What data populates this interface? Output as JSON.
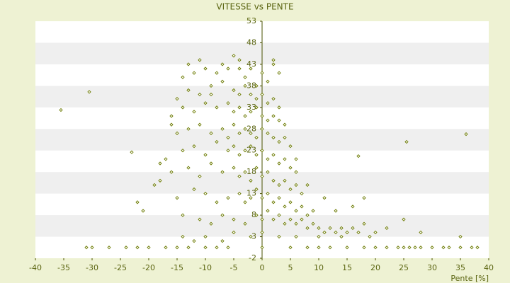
{
  "chart_data": {
    "type": "scatter",
    "title": "VITESSE vs PENTE",
    "x_label": "Pente [%]",
    "color": "#6b7a00",
    "grid": true,
    "xlim": [
      -40,
      40
    ],
    "xticks": [
      -40,
      -35,
      -30,
      -25,
      -20,
      -15,
      -10,
      -5,
      0,
      5,
      10,
      15,
      20,
      25,
      30,
      35,
      40
    ],
    "ylim": [
      -2,
      53
    ],
    "yticks": [
      -2,
      3,
      8,
      13,
      18,
      23,
      28,
      33,
      38,
      43,
      48,
      53
    ],
    "x": [
      -35.5,
      -30.5,
      36,
      25.5,
      -23,
      17,
      -31,
      -30,
      -27,
      -24,
      -22,
      -20,
      -17,
      -15,
      -13,
      -10,
      -8,
      -6,
      0,
      5,
      8,
      10,
      12,
      15,
      18,
      20,
      22,
      24,
      25,
      26,
      27,
      28,
      30,
      32,
      33,
      35,
      37,
      38,
      -14,
      -12,
      -10,
      -8,
      -6,
      -5,
      -4,
      -3,
      -2,
      -1,
      0,
      1,
      2,
      -15,
      -13,
      -11,
      -9,
      -7,
      -5,
      -4,
      -3,
      -2,
      -1,
      0,
      1,
      2,
      3,
      -16,
      -14,
      -12,
      -10,
      -8,
      -6,
      -5,
      -4,
      -3,
      -2,
      -1,
      0,
      1,
      2,
      3,
      4,
      -15,
      -13,
      -11,
      -9,
      -7,
      -6,
      -5,
      -4,
      -3,
      -2,
      -1,
      0,
      1,
      2,
      3,
      4,
      5,
      -14,
      -12,
      -10,
      -8,
      -6,
      -5,
      -4,
      -3,
      -2,
      -1,
      0,
      1,
      2,
      3,
      4,
      5,
      6,
      -18,
      -16,
      -13,
      -11,
      -9,
      -7,
      -5,
      -4,
      -3,
      -2,
      -1,
      0,
      1,
      2,
      3,
      4,
      5,
      6,
      7,
      -19,
      -15,
      -12,
      -10,
      -8,
      -6,
      -4,
      -3,
      -2,
      -1,
      0,
      1,
      2,
      3,
      4,
      5,
      6,
      7,
      8,
      9,
      -14,
      -11,
      -9,
      -7,
      -5,
      -3,
      -1,
      0,
      1,
      2,
      3,
      4,
      5,
      6,
      7,
      8,
      9,
      10,
      11,
      12,
      13,
      14,
      15,
      16,
      17,
      18,
      19,
      20,
      -14,
      -12,
      -10,
      -7,
      -5,
      -2,
      0,
      3,
      6,
      10,
      14,
      22,
      25,
      28,
      35,
      -22,
      -21,
      -18,
      -17,
      -16,
      -13,
      -11,
      -9,
      -7,
      -4,
      2,
      3,
      6,
      8,
      11,
      13,
      16,
      18
    ],
    "y": [
      32.4,
      36.6,
      26.8,
      25,
      22.6,
      21.7,
      0.5,
      0.5,
      0.5,
      0.5,
      0.5,
      0.5,
      0.5,
      0.5,
      0.5,
      0.5,
      0.5,
      0.5,
      0.5,
      0.5,
      0.5,
      0.5,
      0.5,
      0.5,
      0.5,
      0.5,
      0.5,
      0.5,
      0.5,
      0.5,
      0.5,
      0.5,
      0.5,
      0.5,
      0.5,
      0.5,
      0.5,
      0.5,
      40,
      41,
      42,
      41,
      42,
      45,
      44,
      40,
      42,
      38,
      41,
      39,
      43,
      35,
      37,
      36,
      38,
      39,
      37,
      36,
      38,
      36,
      35,
      36,
      34,
      35,
      33,
      31,
      33,
      32,
      34,
      33,
      34,
      32,
      33,
      31,
      32,
      33,
      31,
      30,
      31,
      30,
      29,
      27,
      28,
      29,
      27,
      28,
      26,
      29,
      27,
      28,
      27,
      26,
      28,
      27,
      26,
      25,
      26,
      24,
      23,
      24,
      22,
      25,
      23,
      24,
      22,
      23,
      24,
      22,
      23,
      21,
      22,
      20,
      21,
      19,
      18,
      20,
      18,
      19,
      17,
      20,
      18,
      19,
      17,
      18,
      16,
      19,
      17,
      18,
      16,
      15,
      16,
      14,
      15,
      13,
      15,
      12,
      14,
      13,
      11,
      12,
      13,
      11,
      12,
      14,
      12,
      13,
      11,
      12,
      10,
      11,
      9,
      10,
      8,
      9,
      8,
      7,
      6,
      8,
      7,
      6,
      8,
      7,
      9,
      7,
      8,
      6,
      7,
      6,
      7,
      5,
      6,
      5,
      4,
      5,
      4,
      5,
      4,
      5,
      4,
      6,
      3,
      4,
      3,
      2,
      3,
      2,
      4,
      3,
      4,
      3,
      3,
      3,
      3,
      5,
      7,
      4,
      3,
      11,
      9,
      16,
      21,
      29,
      43,
      44,
      36,
      43,
      42,
      44,
      41,
      21,
      15,
      12,
      9,
      10,
      12
    ]
  }
}
